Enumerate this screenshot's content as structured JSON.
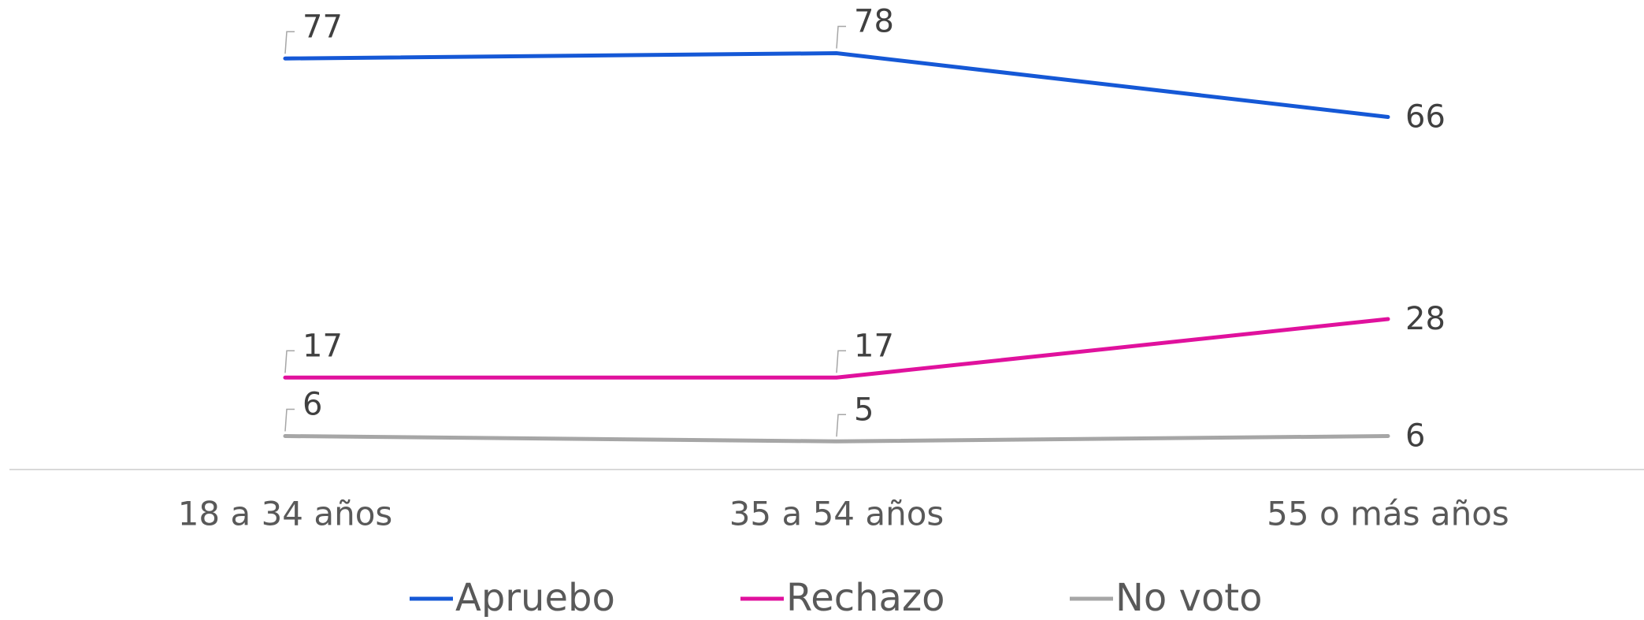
{
  "chart_data": {
    "type": "line",
    "categories": [
      "18 a 34 años",
      "35 a 54 años",
      "55 o más años"
    ],
    "series": [
      {
        "name": "Apruebo",
        "color": "#1558d6",
        "values": [
          77,
          78,
          66
        ]
      },
      {
        "name": "Rechazo",
        "color": "#e0119d",
        "values": [
          17,
          17,
          28
        ]
      },
      {
        "name": "No voto",
        "color": "#a6a6a6",
        "values": [
          6,
          5,
          6
        ]
      }
    ],
    "ylim": [
      0,
      88
    ]
  }
}
